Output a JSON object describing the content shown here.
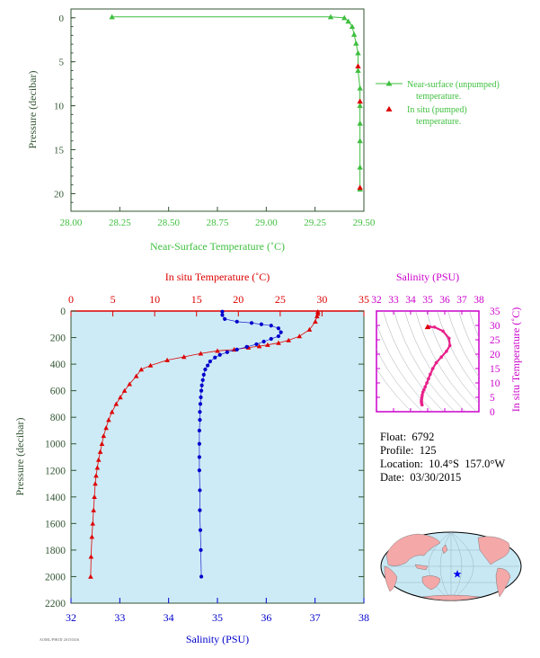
{
  "colors": {
    "green": "#2e8b2e",
    "axisGreen": "#335533",
    "red": "#dd0000",
    "blue": "#0000cc",
    "magenta": "#cc00cc",
    "plotBg": "#cdebf6",
    "land": "#f4a8a8",
    "ocean": "#c8e8f4"
  },
  "info": {
    "float": "Float:  6792",
    "profile": "Profile:  125",
    "location": "Location:  10.4°S  157.0°W",
    "date": "Date:  03/30/2015"
  },
  "footer_code": "AOML/PHOD 20150416",
  "chart_data": [
    {
      "type": "line",
      "title": "",
      "xlabel": "Near-Surface Temperature (˚C)",
      "ylabel": "Pressure (decibar)",
      "xlim": [
        28.0,
        29.5
      ],
      "ylim": [
        22,
        -1
      ],
      "xticks": [
        "28.00",
        "28.25",
        "28.50",
        "28.75",
        "29.00",
        "29.25",
        "29.50"
      ],
      "yticks": [
        "0",
        "5",
        "10",
        "15",
        "20"
      ],
      "legend_position": "right",
      "series": [
        {
          "name": "Near-surface (unpumped) temperature.",
          "marker": "triangle",
          "color": "#3fbf3f",
          "x": [
            28.21,
            29.33,
            29.4,
            29.42,
            29.44,
            29.45,
            29.46,
            29.47,
            29.47,
            29.48,
            29.48,
            29.48,
            29.48,
            29.48,
            29.48
          ],
          "y": [
            -0.1,
            -0.1,
            0.0,
            0.4,
            1.0,
            1.9,
            2.9,
            4.0,
            6.0,
            8.0,
            10.0,
            12.0,
            14.0,
            17.0,
            19.5
          ]
        },
        {
          "name": "In situ (pumped) temperature.",
          "marker": "triangle",
          "color": "#dd0000",
          "x": [
            29.47,
            29.48,
            29.48
          ],
          "y": [
            5.5,
            9.5,
            19.3
          ]
        }
      ]
    },
    {
      "type": "line",
      "title": "",
      "xlabel": "Salinity (PSU)",
      "xlabel_top": "In situ Temperature (˚C)",
      "ylabel": "Pressure (decibar)",
      "salinity_xlim": [
        32,
        38
      ],
      "salinity_ticks": [
        "32",
        "33",
        "34",
        "35",
        "36",
        "37",
        "38"
      ],
      "temperature_xlim": [
        0,
        35
      ],
      "temperature_ticks": [
        "0",
        "5",
        "10",
        "15",
        "20",
        "25",
        "30",
        "35"
      ],
      "ylim": [
        2200,
        0
      ],
      "yticks": [
        "0",
        "200",
        "400",
        "600",
        "800",
        "1000",
        "1200",
        "1400",
        "1600",
        "1800",
        "2000",
        "2200"
      ],
      "series": [
        {
          "name": "In situ Temperature (˚C)",
          "axis": "temperature",
          "marker": "triangle",
          "color": "#dd0000",
          "x": [
            29.5,
            29.5,
            29.4,
            29.2,
            28.5,
            27.3,
            26.0,
            24.8,
            23.5,
            22.5,
            21.2,
            19.5,
            17.5,
            15.5,
            13.5,
            11.5,
            9.5,
            8.4,
            7.8,
            7.0,
            6.4,
            5.9,
            5.4,
            4.9,
            4.5,
            4.2,
            3.9,
            3.7,
            3.5,
            3.3,
            3.15,
            3.0,
            2.9,
            2.8,
            2.7,
            2.6,
            2.5,
            2.4,
            2.35
          ],
          "y": [
            5,
            20,
            40,
            80,
            140,
            190,
            220,
            240,
            255,
            265,
            275,
            290,
            300,
            320,
            345,
            370,
            410,
            440,
            490,
            550,
            600,
            650,
            700,
            760,
            820,
            880,
            940,
            1000,
            1060,
            1120,
            1180,
            1240,
            1300,
            1400,
            1500,
            1600,
            1700,
            1850,
            2000
          ]
        },
        {
          "name": "Salinity (PSU)",
          "axis": "salinity",
          "marker": "circle",
          "color": "#0000cc",
          "x": [
            35.1,
            35.1,
            35.15,
            35.4,
            35.7,
            35.9,
            36.1,
            36.25,
            36.3,
            36.25,
            36.1,
            35.95,
            35.8,
            35.6,
            35.4,
            35.2,
            35.05,
            34.95,
            34.85,
            34.8,
            34.75,
            34.72,
            34.7,
            34.68,
            34.67,
            34.66,
            34.65,
            34.64,
            34.64,
            34.63,
            34.63,
            34.63,
            34.63,
            34.64,
            34.64,
            34.65,
            34.66,
            34.67
          ],
          "y": [
            5,
            30,
            60,
            80,
            90,
            100,
            110,
            130,
            160,
            190,
            210,
            230,
            250,
            270,
            290,
            310,
            330,
            350,
            380,
            410,
            440,
            480,
            520,
            560,
            600,
            650,
            700,
            760,
            820,
            900,
            1000,
            1100,
            1200,
            1350,
            1500,
            1650,
            1800,
            2000
          ]
        }
      ]
    },
    {
      "type": "scatter",
      "title": "",
      "xlabel": "Salinity (PSU)",
      "ylabel": "In situ Temperature (˚C)",
      "xlim": [
        32,
        38
      ],
      "xticks": [
        "32",
        "33",
        "34",
        "35",
        "36",
        "37",
        "38"
      ],
      "ylim": [
        0,
        35
      ],
      "yticks": [
        "0",
        "5",
        "10",
        "15",
        "20",
        "25",
        "30",
        "35"
      ],
      "grid": false,
      "series": [
        {
          "name": "",
          "color": "#e8208a",
          "x": [
            35.1,
            35.4,
            35.9,
            36.25,
            36.3,
            36.1,
            35.8,
            35.5,
            35.3,
            35.15,
            35.05,
            34.95,
            34.85,
            34.78,
            34.72,
            34.68,
            34.66,
            34.64,
            34.63,
            34.64,
            34.67
          ],
          "y": [
            29.5,
            29.4,
            28.0,
            25.5,
            23.0,
            21.0,
            19.0,
            17.0,
            15.0,
            13.0,
            11.5,
            10.0,
            8.6,
            7.6,
            6.8,
            5.8,
            5.0,
            4.2,
            3.6,
            3.0,
            2.4
          ]
        }
      ]
    },
    {
      "type": "map",
      "title": "",
      "marker": "star",
      "marker_label": "float position"
    }
  ]
}
